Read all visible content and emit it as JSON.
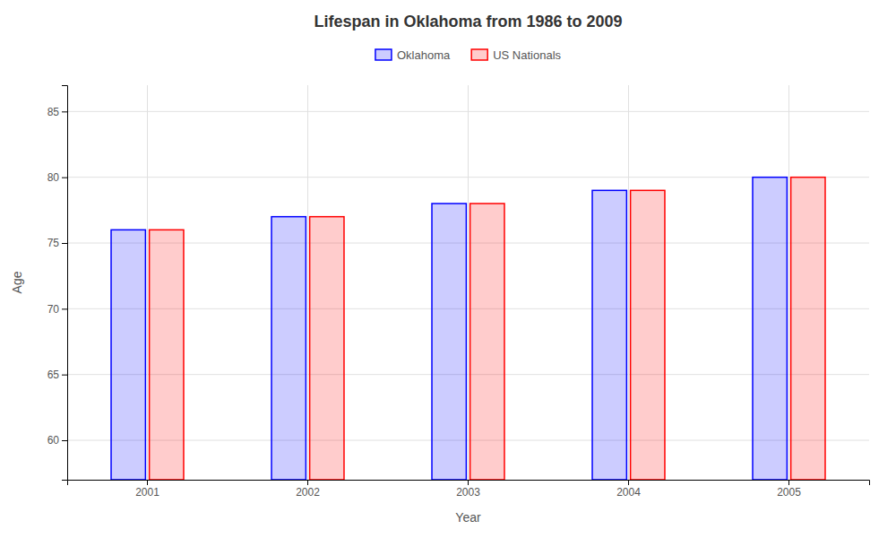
{
  "chart_data": {
    "type": "bar",
    "title": "Lifespan in Oklahoma from 1986 to 2009",
    "xlabel": "Year",
    "ylabel": "Age",
    "categories": [
      "2001",
      "2002",
      "2003",
      "2004",
      "2005"
    ],
    "series": [
      {
        "name": "Oklahoma",
        "color": "#0000ff",
        "values": [
          76,
          77,
          78,
          79,
          80
        ]
      },
      {
        "name": "US Nationals",
        "color": "#ff0000",
        "values": [
          76,
          77,
          78,
          79,
          80
        ]
      }
    ],
    "ylim": [
      57,
      87
    ],
    "yticks": [
      60,
      65,
      70,
      75,
      80,
      85
    ],
    "grid": true,
    "legend": "top"
  }
}
